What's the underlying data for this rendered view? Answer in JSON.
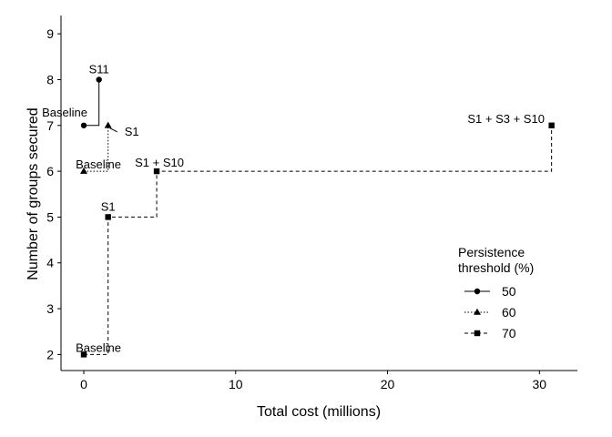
{
  "chart_data": {
    "type": "line",
    "line_shape": "step",
    "xlabel": "Total cost (millions)",
    "ylabel": "Number of groups secured",
    "xlim": [
      -1.5,
      32.5
    ],
    "ylim": [
      1.65,
      9.4
    ],
    "x_ticks": [
      0,
      10,
      20,
      30
    ],
    "y_ticks": [
      2,
      3,
      4,
      5,
      6,
      7,
      8,
      9
    ],
    "grid": false,
    "legend": {
      "title_lines": [
        "Persistence",
        "threshold (%)"
      ],
      "placement": "bottom-right"
    },
    "series": [
      {
        "name": "50",
        "marker": "circle",
        "dash": "solid",
        "points": [
          {
            "x": 0,
            "y": 7,
            "label": "Baseline"
          },
          {
            "x": 1.0,
            "y": 8,
            "label": "S11"
          }
        ]
      },
      {
        "name": "60",
        "marker": "triangle",
        "dash": "dotted",
        "points": [
          {
            "x": 0,
            "y": 6,
            "label": "Baseline"
          },
          {
            "x": 1.6,
            "y": 7,
            "label": "S1"
          }
        ]
      },
      {
        "name": "70",
        "marker": "square",
        "dash": "dashed",
        "points": [
          {
            "x": 0,
            "y": 2,
            "label": "Baseline"
          },
          {
            "x": 1.6,
            "y": 5,
            "label": "S1"
          },
          {
            "x": 4.8,
            "y": 6,
            "label": "S1 + S10"
          },
          {
            "x": 30.8,
            "y": 7,
            "label": "S1 + S3 + S10"
          }
        ]
      }
    ]
  }
}
